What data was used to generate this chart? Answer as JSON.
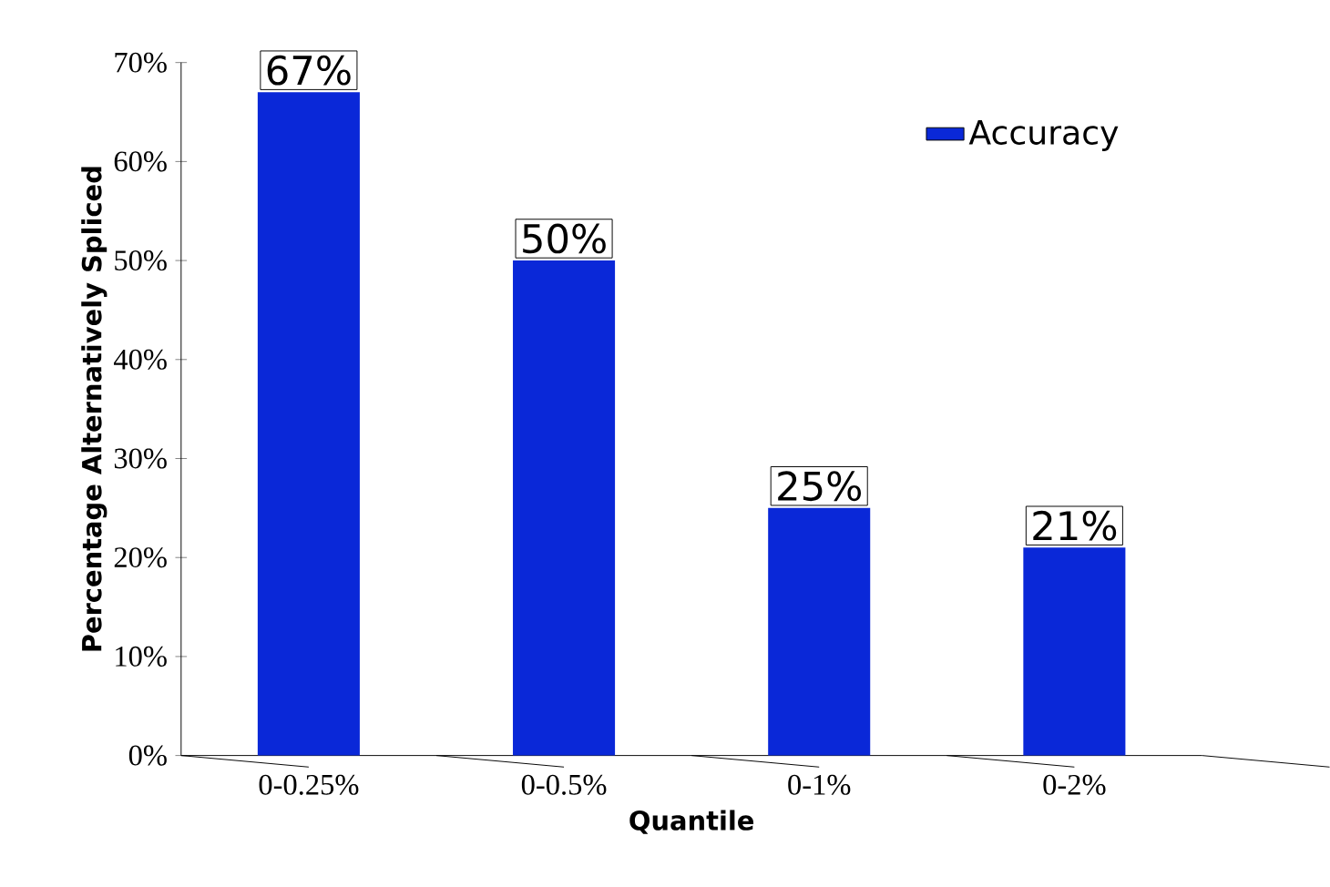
{
  "chart_data": {
    "type": "bar",
    "xlabel": "Quantile",
    "ylabel": "Percentage Alternatively Spliced",
    "categories": [
      "0-0.25%",
      "0-0.5%",
      "0-1%",
      "0-2%"
    ],
    "series": [
      {
        "name": "Accuracy",
        "color": "#0a28d8",
        "values": [
          67,
          50,
          25,
          21
        ]
      }
    ],
    "value_labels": [
      "67%",
      "50%",
      "25%",
      "21%"
    ],
    "ylim": [
      0,
      70
    ],
    "yticks": [
      {
        "value": 0,
        "label": "0%"
      },
      {
        "value": 10,
        "label": "10%"
      },
      {
        "value": 20,
        "label": "20%"
      },
      {
        "value": 30,
        "label": "30%"
      },
      {
        "value": 40,
        "label": "40%"
      },
      {
        "value": 50,
        "label": "50%"
      },
      {
        "value": 60,
        "label": "60%"
      },
      {
        "value": 70,
        "label": "70%"
      }
    ],
    "legend": "top right",
    "grid": false
  }
}
